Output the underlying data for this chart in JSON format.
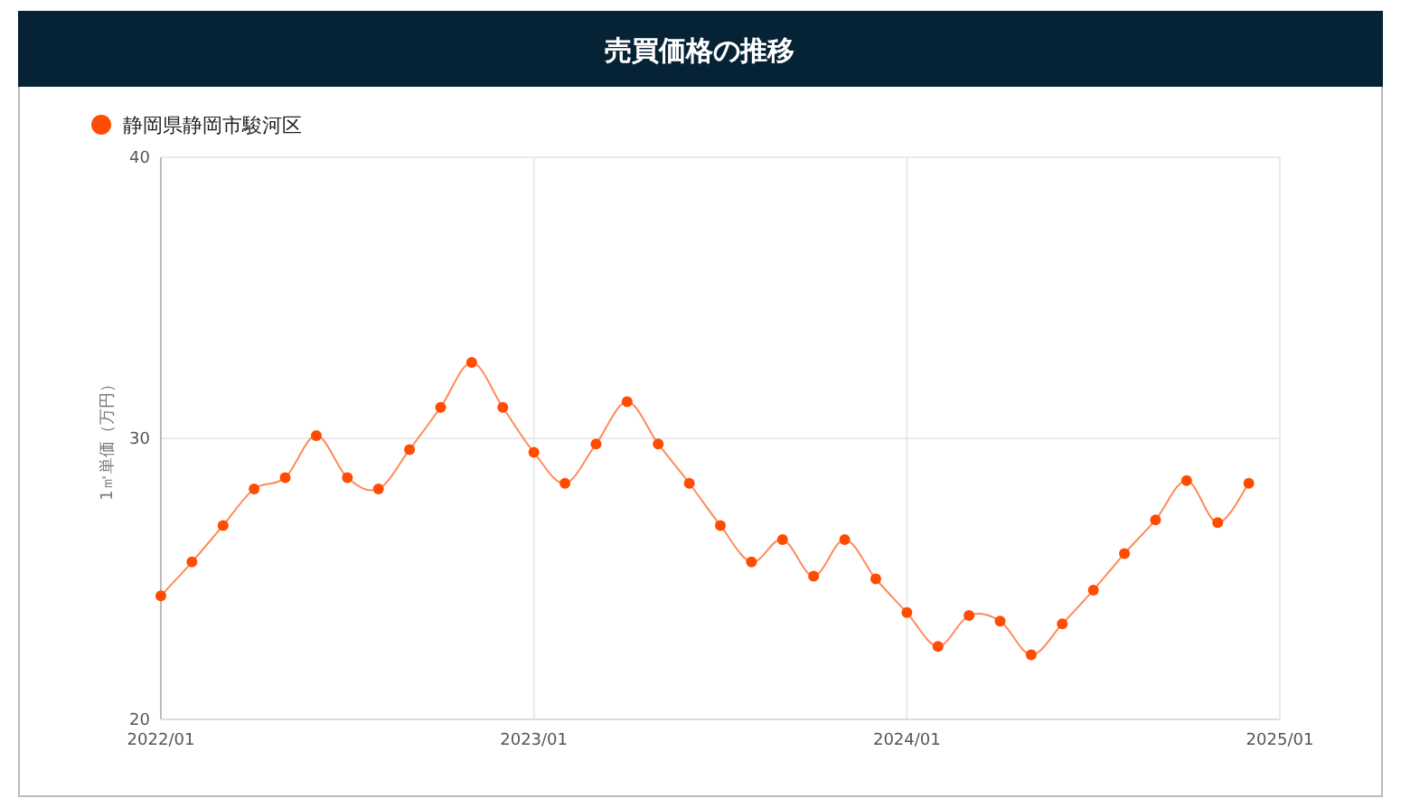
{
  "chart_data": {
    "type": "line",
    "title": "売買価格の推移",
    "ylabel": "1㎡単価（万円）",
    "x": [
      "2022-01",
      "2022-02",
      "2022-03",
      "2022-04",
      "2022-05",
      "2022-06",
      "2022-07",
      "2022-08",
      "2022-09",
      "2022-10",
      "2022-11",
      "2022-12",
      "2023-01",
      "2023-02",
      "2023-03",
      "2023-04",
      "2023-05",
      "2023-06",
      "2023-07",
      "2023-08",
      "2023-09",
      "2023-10",
      "2023-11",
      "2023-12",
      "2024-01",
      "2024-02",
      "2024-03",
      "2024-04",
      "2024-05",
      "2024-06",
      "2024-07",
      "2024-08",
      "2024-09",
      "2024-10",
      "2024-11",
      "2024-12"
    ],
    "series": [
      {
        "name": "静岡県静岡市駿河区",
        "color": "#ff4c00",
        "values": [
          24.4,
          25.6,
          26.9,
          28.2,
          28.6,
          30.1,
          28.6,
          28.2,
          29.6,
          31.1,
          32.7,
          31.1,
          29.5,
          28.4,
          29.8,
          31.3,
          29.8,
          28.4,
          26.9,
          25.6,
          26.4,
          25.1,
          26.4,
          25.0,
          23.8,
          22.6,
          23.7,
          23.5,
          22.3,
          23.4,
          24.6,
          25.9,
          27.1,
          28.5,
          27.0,
          28.4
        ]
      }
    ],
    "xlim": [
      "2022-01",
      "2025-01"
    ],
    "xticks": [
      {
        "value": "2022-01",
        "label": "2022/01"
      },
      {
        "value": "2023-01",
        "label": "2023/01"
      },
      {
        "value": "2024-01",
        "label": "2024/01"
      },
      {
        "value": "2025-01",
        "label": "2025/01"
      }
    ],
    "ylim": [
      20,
      40
    ],
    "yticks": [
      20,
      30,
      40
    ],
    "grid": true,
    "legend": "top left",
    "marker": "circle",
    "line_style": "solid"
  }
}
